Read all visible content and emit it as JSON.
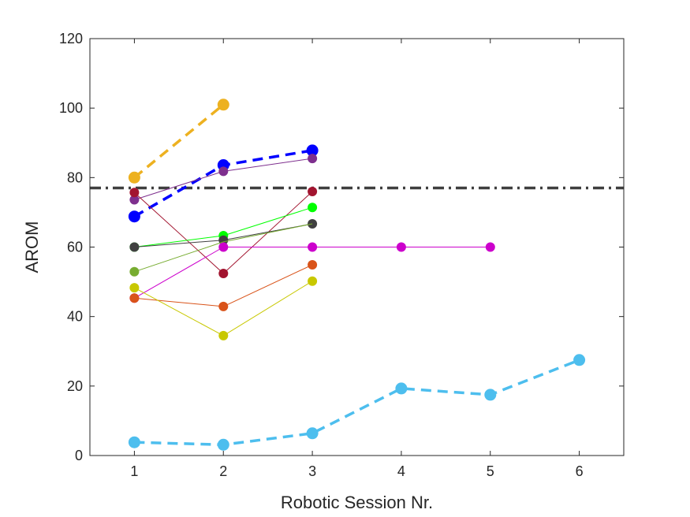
{
  "chart_data": {
    "type": "line",
    "title": "",
    "xlabel": "Robotic Session Nr.",
    "ylabel": "AROM",
    "xlim": [
      0.5,
      6.5
    ],
    "ylim": [
      0,
      120
    ],
    "xticks": [
      "1",
      "2",
      "3",
      "4",
      "5",
      "6"
    ],
    "yticks": [
      "0",
      "20",
      "40",
      "60",
      "80",
      "100",
      "120"
    ],
    "grid": false,
    "reference_line": {
      "y": 77,
      "style": "dash-dot",
      "color": "#3f3f3f"
    },
    "series": [
      {
        "x": [
          1,
          2
        ],
        "y": [
          80,
          101
        ],
        "color": "#EDB120",
        "style": "dashed",
        "thick": true
      },
      {
        "x": [
          1,
          2,
          3
        ],
        "y": [
          68.8,
          83.6,
          87.8
        ],
        "color": "#0000FF",
        "style": "dashed",
        "thick": true
      },
      {
        "x": [
          1,
          2,
          3,
          4,
          5,
          6
        ],
        "y": [
          3.8,
          3.1,
          6.4,
          19.3,
          17.5,
          27.5
        ],
        "color": "#4DBEEE",
        "style": "dashed",
        "thick": true
      },
      {
        "x": [
          1,
          2,
          3
        ],
        "y": [
          73.6,
          81.8,
          85.5
        ],
        "color": "#7E2F8E",
        "style": "solid",
        "thick": false
      },
      {
        "x": [
          1,
          2,
          3
        ],
        "y": [
          75.7,
          52.4,
          76
        ],
        "color": "#A2142F",
        "style": "solid",
        "thick": false
      },
      {
        "x": [
          1,
          2,
          3
        ],
        "y": [
          60,
          63.3,
          71.4
        ],
        "color": "#00FF00",
        "style": "solid",
        "thick": false
      },
      {
        "x": [
          1,
          2,
          3
        ],
        "y": [
          60,
          62,
          66.7
        ],
        "color": "#404040",
        "style": "solid",
        "thick": false
      },
      {
        "x": [
          1,
          2,
          3,
          4,
          5
        ],
        "y": [
          45.3,
          60,
          60,
          60,
          60
        ],
        "color": "#CC00CC",
        "style": "solid",
        "thick": false
      },
      {
        "x": [
          1,
          2,
          3
        ],
        "y": [
          52.9,
          61.5,
          66.7
        ],
        "color": "#77AC30",
        "style": "solid",
        "thick": false,
        "hidden_points": [
          1,
          2
        ]
      },
      {
        "x": [
          1,
          2,
          3
        ],
        "y": [
          45.3,
          42.9,
          54.9
        ],
        "color": "#D95319",
        "style": "solid",
        "thick": false
      },
      {
        "x": [
          1,
          2,
          3
        ],
        "y": [
          48.3,
          34.5,
          50.2
        ],
        "color": "#C8C800",
        "style": "solid",
        "thick": false
      }
    ]
  }
}
